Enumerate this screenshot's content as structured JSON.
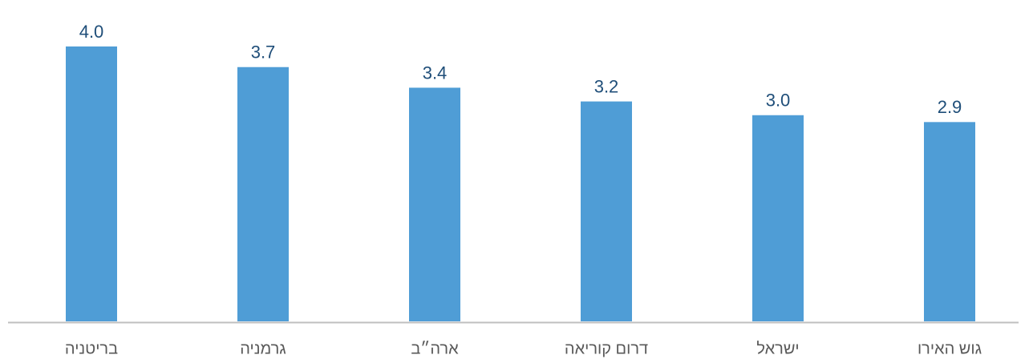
{
  "chart_data": {
    "type": "bar",
    "categories": [
      "בריטניה",
      "גרמניה",
      "ארה״ב",
      "דרום קוריאה",
      "ישראל",
      "גוש האירו"
    ],
    "values": [
      4.0,
      3.7,
      3.4,
      3.2,
      3.0,
      2.9
    ],
    "value_labels": [
      "4.0",
      "3.7",
      "3.4",
      "3.2",
      "3.0",
      "2.9"
    ],
    "color": "#4f9dd6",
    "ylim": [
      0,
      4
    ]
  }
}
